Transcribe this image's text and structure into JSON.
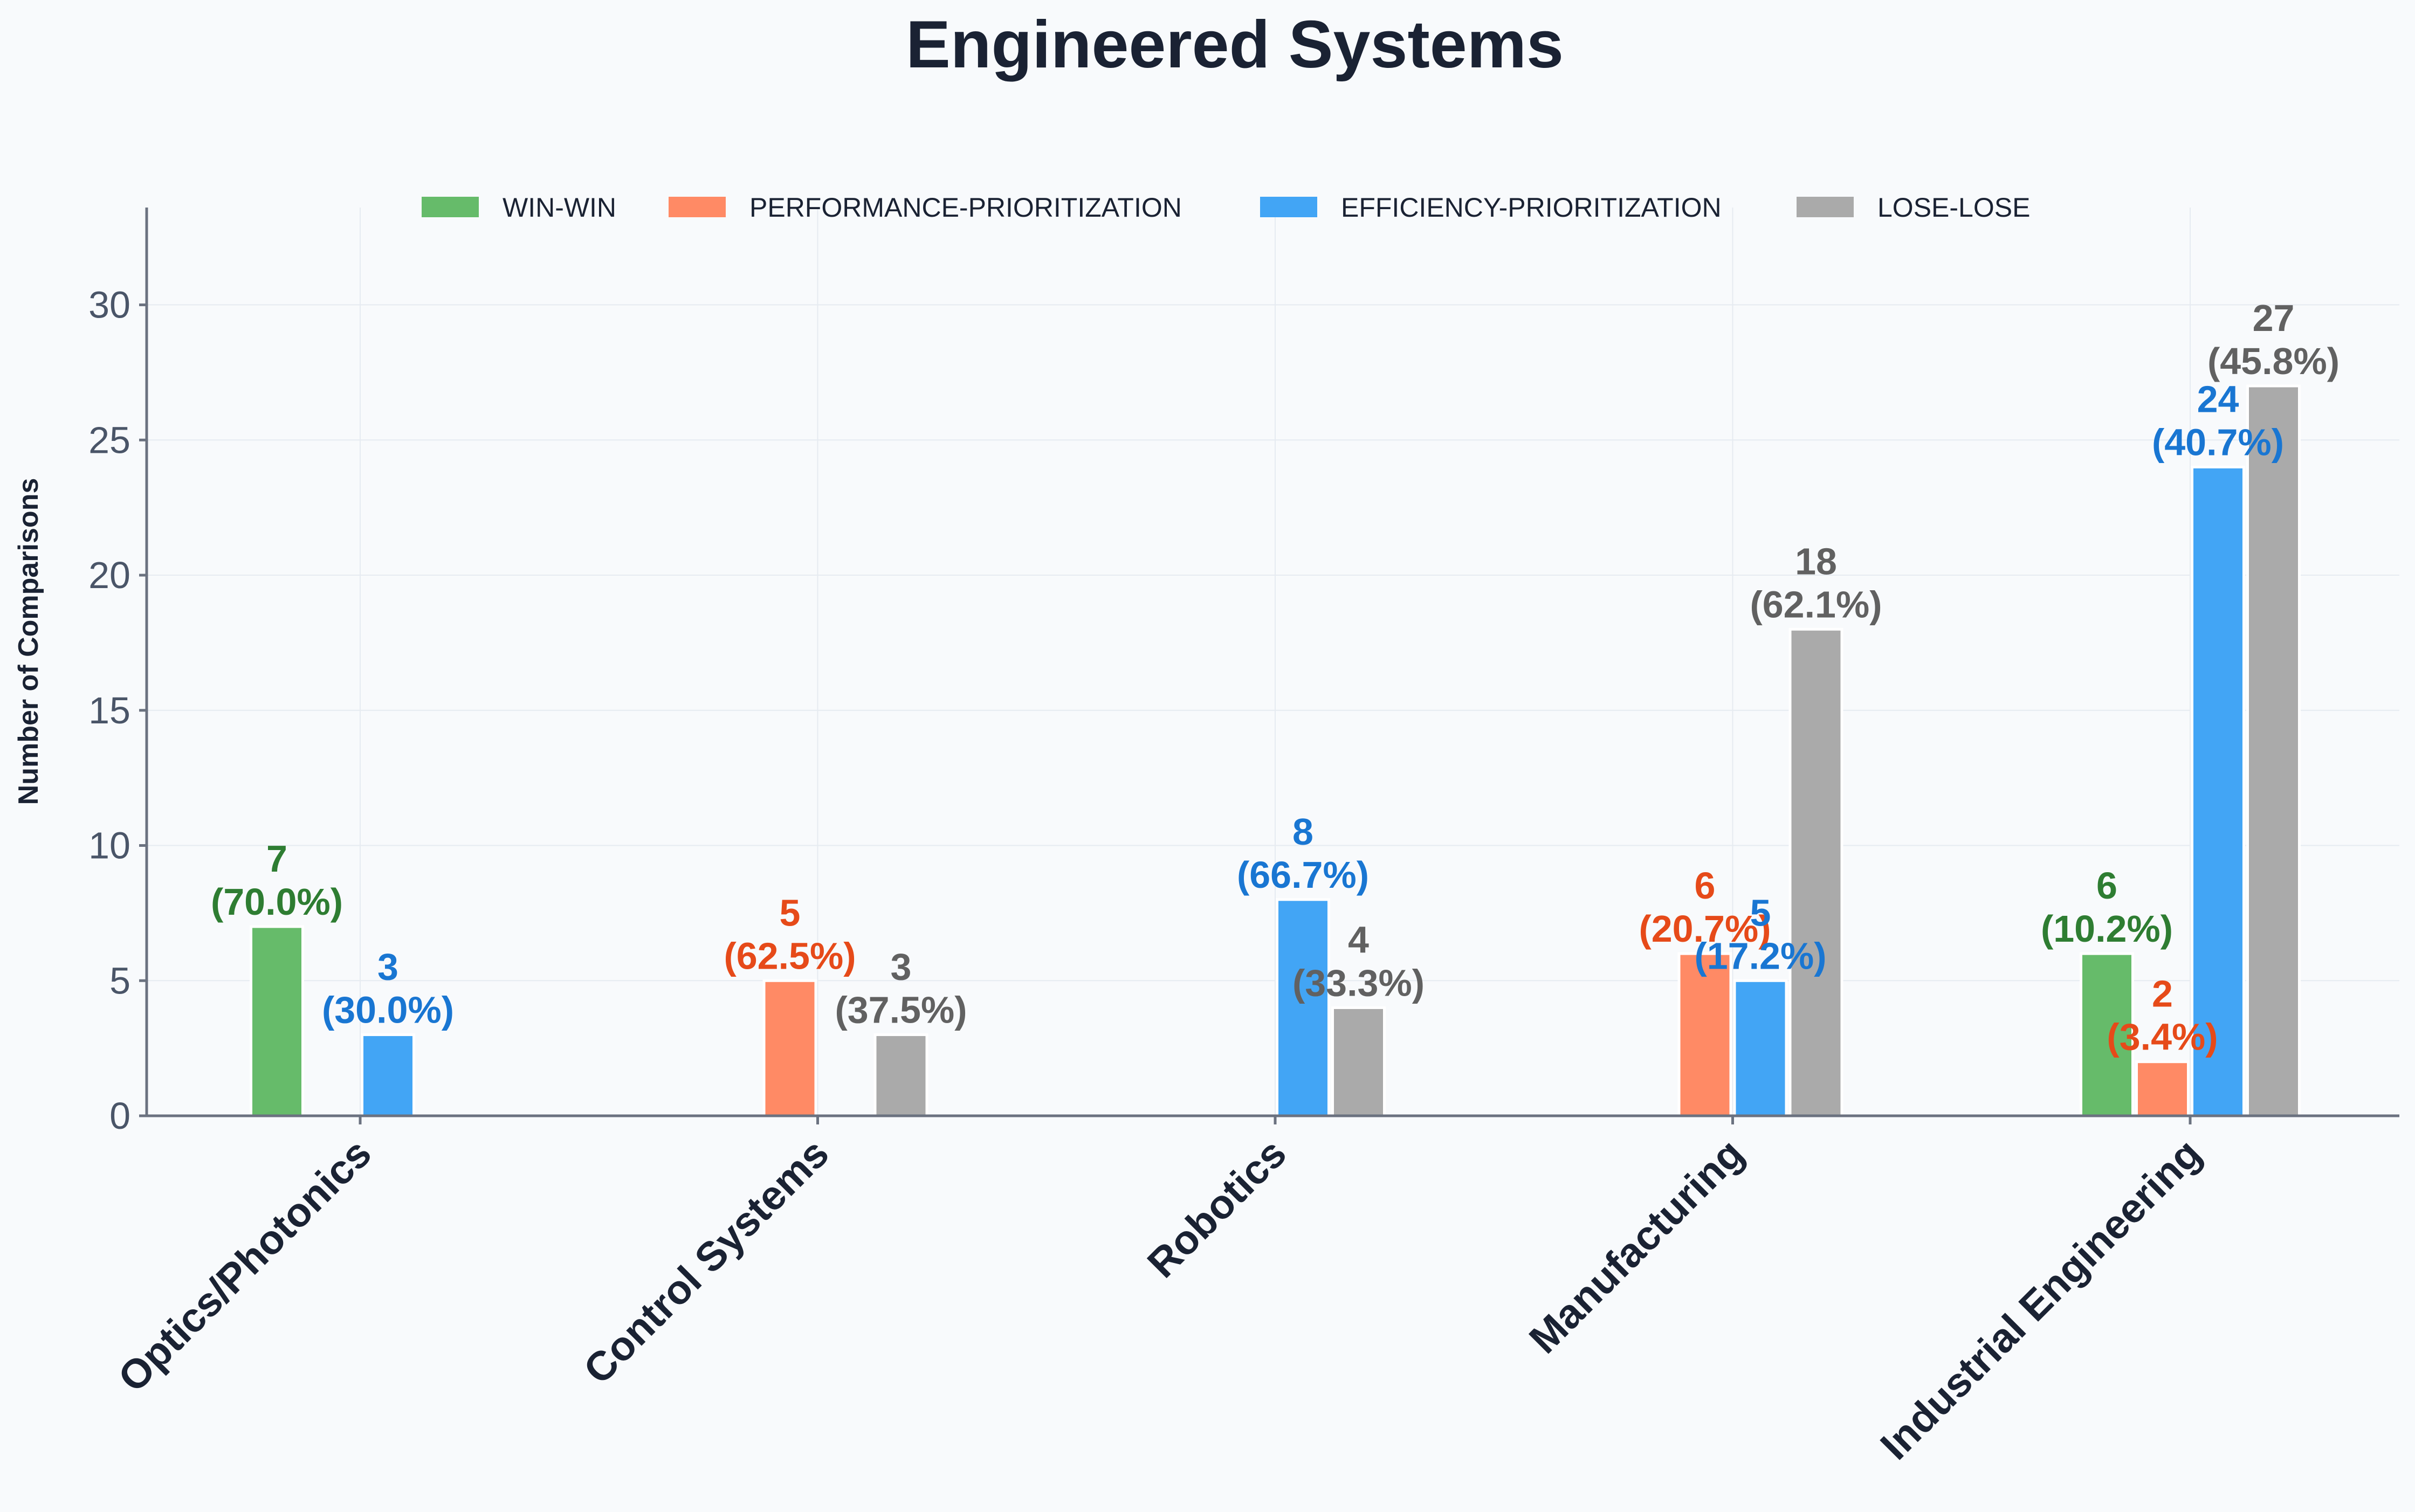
{
  "chart_data": {
    "type": "bar",
    "title": "Engineered Systems",
    "ylabel": "Number of Comparisons",
    "xlabel": "",
    "ylim": [
      0,
      33.6
    ],
    "yticks": [
      0,
      5,
      10,
      15,
      20,
      25,
      30
    ],
    "grid": true,
    "legend_position": "top-center",
    "categories": [
      "Optics/Photonics",
      "Control Systems",
      "Robotics",
      "Manufacturing",
      "Industrial Engineering"
    ],
    "series": [
      {
        "name": "WIN-WIN",
        "color": "#66bb6a",
        "label_color": "#2e7d32",
        "values": [
          7,
          0,
          0,
          0,
          6
        ],
        "labels": [
          "7\n(70.0%)",
          "",
          "",
          "",
          "6\n(10.2%)"
        ]
      },
      {
        "name": "PERFORMANCE-PRIORITIZATION",
        "color": "#ff8a65",
        "label_color": "#e64a19",
        "values": [
          0,
          5,
          0,
          6,
          2
        ],
        "labels": [
          "",
          "5\n(62.5%)",
          "",
          "6\n(20.7%)",
          "2\n(3.4%)"
        ]
      },
      {
        "name": "EFFICIENCY-PRIORITIZATION",
        "color": "#42a5f5",
        "label_color": "#1976d2",
        "values": [
          3,
          0,
          8,
          5,
          24
        ],
        "labels": [
          "3\n(30.0%)",
          "",
          "8\n(66.7%)",
          "5\n(17.2%)",
          "24\n(40.7%)"
        ]
      },
      {
        "name": "LOSE-LOSE",
        "color": "#aaaaaa",
        "label_color": "#616161",
        "values": [
          0,
          3,
          4,
          18,
          27
        ],
        "labels": [
          "",
          "3\n(37.5%)",
          "4\n(33.3%)",
          "18\n(62.1%)",
          "27\n(45.8%)"
        ]
      }
    ]
  }
}
